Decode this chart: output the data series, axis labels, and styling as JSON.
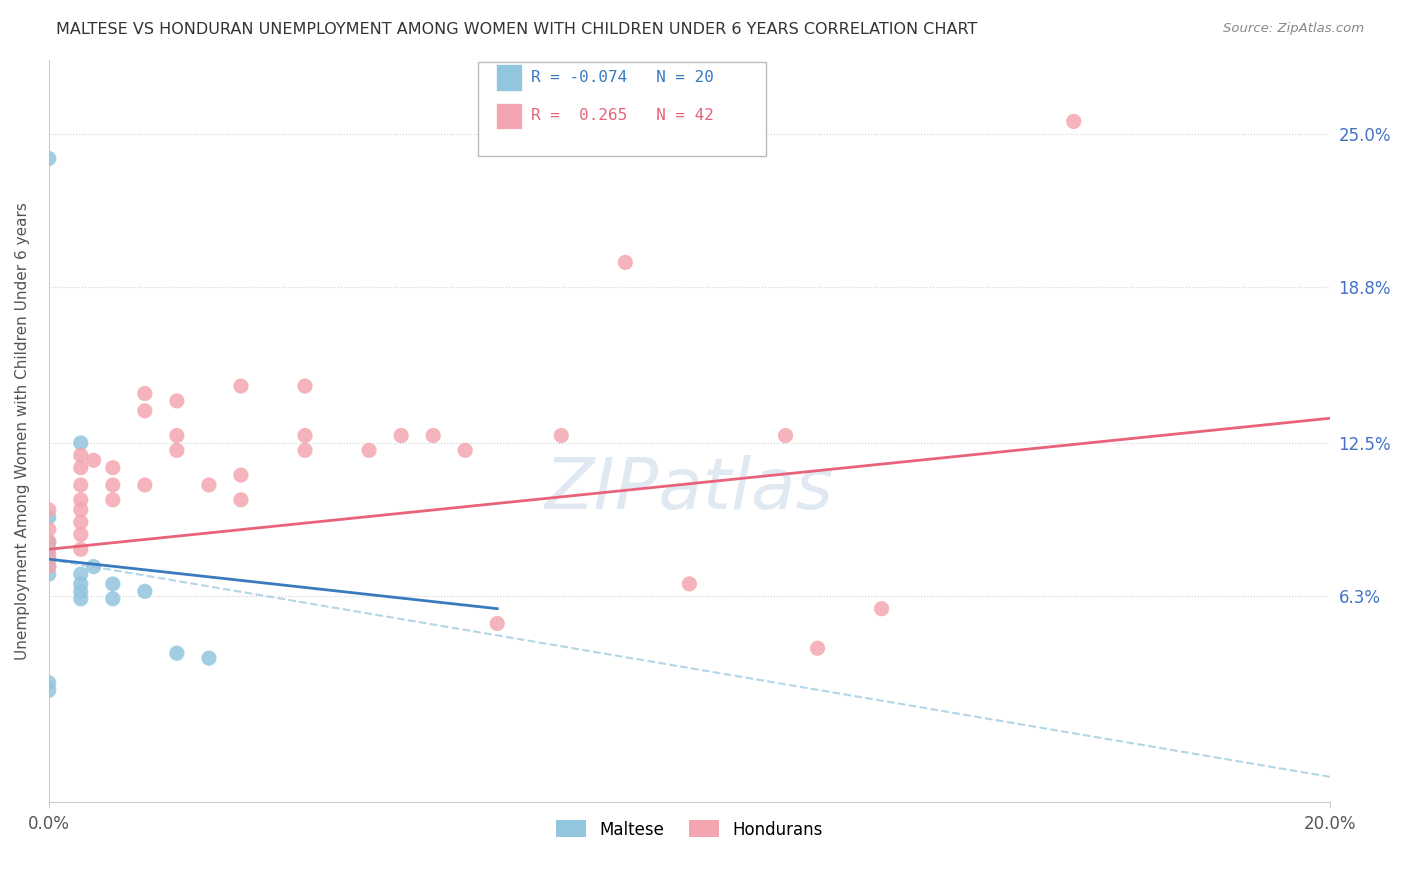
{
  "title": "MALTESE VS HONDURAN UNEMPLOYMENT AMONG WOMEN WITH CHILDREN UNDER 6 YEARS CORRELATION CHART",
  "source": "Source: ZipAtlas.com",
  "ylabel": "Unemployment Among Women with Children Under 6 years",
  "xlim": [
    0.0,
    0.2
  ],
  "ylim": [
    -0.02,
    0.28
  ],
  "ytick_values": [
    0.0,
    0.063,
    0.125,
    0.188,
    0.25
  ],
  "xtick_values": [
    0.0,
    0.2
  ],
  "right_ytick_values": [
    0.25,
    0.188,
    0.125,
    0.063
  ],
  "right_ytick_labels": [
    "25.0%",
    "18.8%",
    "12.5%",
    "6.3%"
  ],
  "maltese_color": "#92c5de",
  "honduran_color": "#f4a6b0",
  "maltese_line_color": "#3a7abf",
  "honduran_line_color": "#e8637a",
  "maltese_R": -0.074,
  "maltese_N": 20,
  "honduran_R": 0.265,
  "honduran_N": 42,
  "maltese_points": [
    [
      0.0,
      0.24
    ],
    [
      0.005,
      0.125
    ],
    [
      0.0,
      0.095
    ],
    [
      0.0,
      0.085
    ],
    [
      0.0,
      0.082
    ],
    [
      0.0,
      0.078
    ],
    [
      0.0,
      0.075
    ],
    [
      0.0,
      0.072
    ],
    [
      0.005,
      0.072
    ],
    [
      0.005,
      0.068
    ],
    [
      0.005,
      0.065
    ],
    [
      0.005,
      0.062
    ],
    [
      0.007,
      0.075
    ],
    [
      0.01,
      0.068
    ],
    [
      0.01,
      0.062
    ],
    [
      0.015,
      0.065
    ],
    [
      0.02,
      0.04
    ],
    [
      0.025,
      0.038
    ],
    [
      0.0,
      0.028
    ],
    [
      0.0,
      0.025
    ]
  ],
  "honduran_points": [
    [
      0.0,
      0.098
    ],
    [
      0.0,
      0.09
    ],
    [
      0.0,
      0.085
    ],
    [
      0.0,
      0.08
    ],
    [
      0.0,
      0.075
    ],
    [
      0.005,
      0.12
    ],
    [
      0.005,
      0.115
    ],
    [
      0.005,
      0.108
    ],
    [
      0.005,
      0.102
    ],
    [
      0.005,
      0.098
    ],
    [
      0.005,
      0.093
    ],
    [
      0.005,
      0.088
    ],
    [
      0.005,
      0.082
    ],
    [
      0.007,
      0.118
    ],
    [
      0.01,
      0.115
    ],
    [
      0.01,
      0.108
    ],
    [
      0.01,
      0.102
    ],
    [
      0.015,
      0.145
    ],
    [
      0.015,
      0.138
    ],
    [
      0.015,
      0.108
    ],
    [
      0.02,
      0.142
    ],
    [
      0.02,
      0.128
    ],
    [
      0.02,
      0.122
    ],
    [
      0.025,
      0.108
    ],
    [
      0.03,
      0.148
    ],
    [
      0.03,
      0.112
    ],
    [
      0.03,
      0.102
    ],
    [
      0.04,
      0.148
    ],
    [
      0.04,
      0.128
    ],
    [
      0.04,
      0.122
    ],
    [
      0.05,
      0.122
    ],
    [
      0.055,
      0.128
    ],
    [
      0.06,
      0.128
    ],
    [
      0.065,
      0.122
    ],
    [
      0.07,
      0.052
    ],
    [
      0.08,
      0.128
    ],
    [
      0.09,
      0.198
    ],
    [
      0.1,
      0.068
    ],
    [
      0.115,
      0.128
    ],
    [
      0.12,
      0.042
    ],
    [
      0.13,
      0.058
    ],
    [
      0.16,
      0.255
    ]
  ],
  "maltese_line": {
    "x0": 0.0,
    "x1": 0.07,
    "y0": 0.078,
    "y1": 0.058
  },
  "maltese_dashed_line": {
    "x0": 0.0,
    "x1": 0.2,
    "y0": 0.078,
    "y1": -0.01
  },
  "honduran_line": {
    "x0": 0.0,
    "x1": 0.2,
    "y0": 0.082,
    "y1": 0.135
  },
  "watermark_text": "ZIPatlas",
  "background_color": "#ffffff",
  "grid_color": "#d0d0d0"
}
